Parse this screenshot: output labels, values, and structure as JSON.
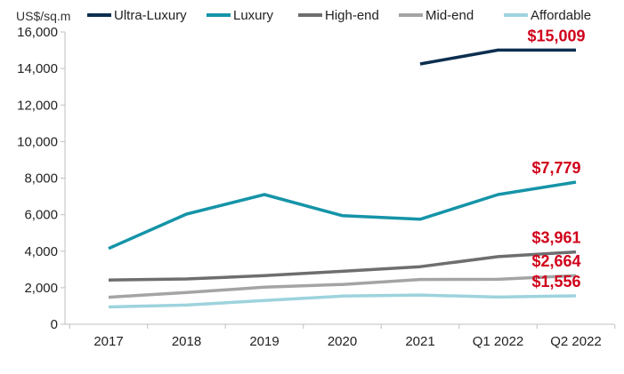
{
  "chart_data": {
    "type": "line",
    "title": "",
    "xlabel": "",
    "ylabel": "US$/sq.m",
    "categories": [
      "2017",
      "2018",
      "2019",
      "2020",
      "2021",
      "Q1 2022",
      "Q2 2022"
    ],
    "ylim": [
      0,
      16000
    ],
    "yticks": [
      0,
      2000,
      4000,
      6000,
      8000,
      10000,
      12000,
      14000,
      16000
    ],
    "ytick_labels": [
      "0",
      "2,000",
      "4,000",
      "6,000",
      "8,000",
      "10,000",
      "12,000",
      "14,000",
      "16,000"
    ],
    "grid": false,
    "legend": "top",
    "series": [
      {
        "name": "Ultra-Luxury",
        "color": "#0d2f4f",
        "values": [
          null,
          null,
          null,
          null,
          14250,
          15009,
          15009
        ]
      },
      {
        "name": "Luxury",
        "color": "#1594a8",
        "values": [
          4150,
          6030,
          7100,
          5950,
          5750,
          7100,
          7779
        ]
      },
      {
        "name": "High-end",
        "color": "#6d6e70",
        "values": [
          2420,
          2480,
          2660,
          2900,
          3150,
          3700,
          3961
        ]
      },
      {
        "name": "Mid-end",
        "color": "#a3a4a6",
        "values": [
          1480,
          1740,
          2030,
          2180,
          2450,
          2460,
          2664
        ]
      },
      {
        "name": "Affordable",
        "color": "#9dd3dd",
        "values": [
          950,
          1050,
          1300,
          1540,
          1600,
          1490,
          1556
        ]
      }
    ],
    "annotations": [
      {
        "text": "$15,009",
        "series": "Ultra-Luxury",
        "value": 15009,
        "color": "#d0021b"
      },
      {
        "text": "$7,779",
        "series": "Luxury",
        "value": 7779,
        "color": "#d0021b"
      },
      {
        "text": "$3,961",
        "series": "High-end",
        "value": 3961,
        "color": "#d0021b"
      },
      {
        "text": "$2,664",
        "series": "Mid-end",
        "value": 2664,
        "color": "#d0021b"
      },
      {
        "text": "$1,556",
        "series": "Affordable",
        "value": 1556,
        "color": "#d0021b"
      }
    ]
  }
}
